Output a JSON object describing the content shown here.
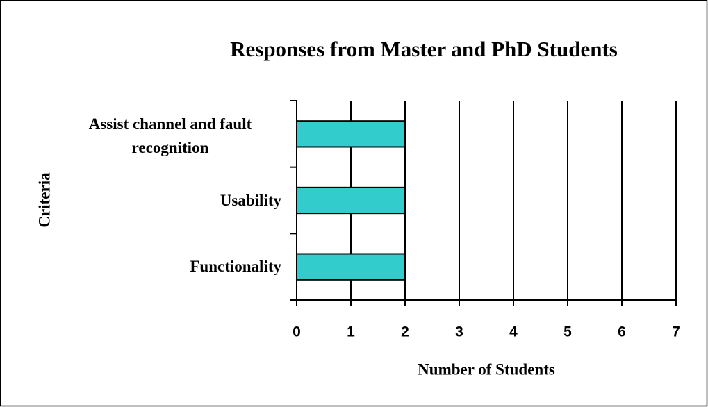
{
  "chart_data": {
    "type": "barh",
    "title": "Responses from Master and PhD Students",
    "xlabel": "Number of Students",
    "ylabel": "Criteria",
    "categories": [
      "Assist channel and fault recognition",
      "Usability",
      "Functionality"
    ],
    "values": [
      2,
      2,
      2
    ],
    "color": "#33cccc",
    "xlim": [
      0,
      7
    ],
    "xticks": [
      0,
      1,
      2,
      3,
      4,
      5,
      6,
      7
    ],
    "grid": true
  }
}
